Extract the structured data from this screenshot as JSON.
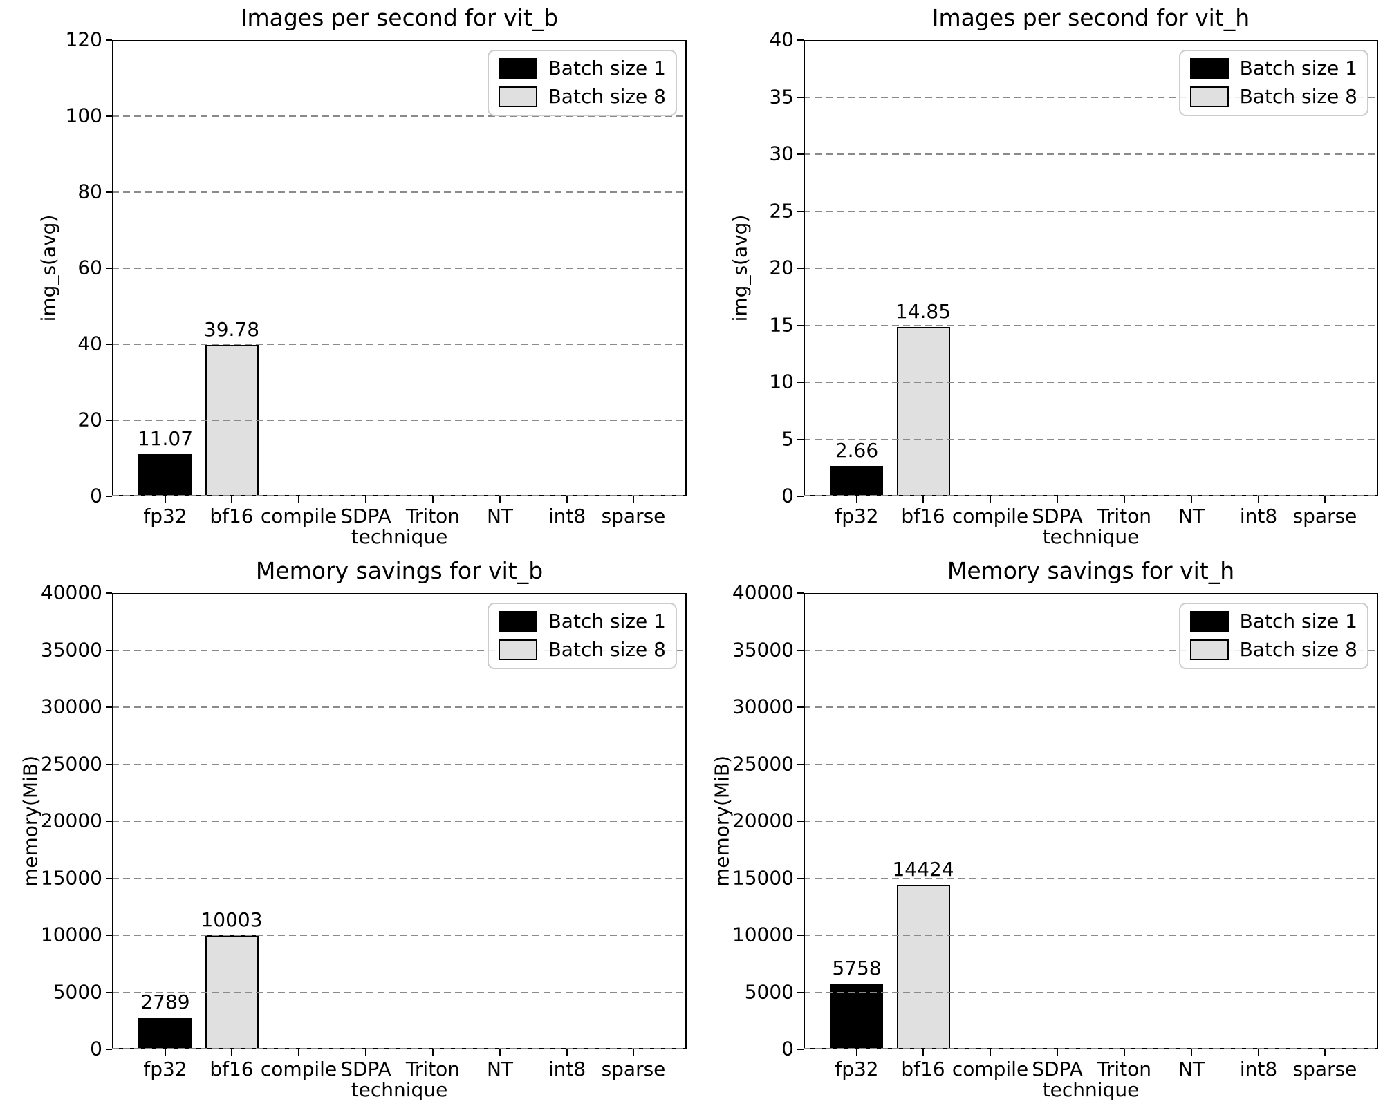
{
  "figure_background": "#ffffff",
  "colors": {
    "batch1_bar": "#000000",
    "batch8_bar": "#e0e0e0",
    "bar_edge": "#000000",
    "grid": "#8a8a8a",
    "spine": "#000000",
    "legend_border": "#cccccc",
    "text": "#000000"
  },
  "legend": {
    "position": "upper right",
    "items": [
      {
        "label": "Batch size 1",
        "color": "#000000"
      },
      {
        "label": "Batch size 8",
        "color": "#e0e0e0"
      }
    ]
  },
  "chart_data": [
    {
      "type": "bar",
      "title": "Images per second for vit_b",
      "ylabel": "img_s(avg)",
      "xlabel": "technique",
      "ylim": [
        0,
        120
      ],
      "yticks": [
        0,
        20,
        40,
        60,
        80,
        100,
        120
      ],
      "ytick_labels": [
        "0",
        "20",
        "40",
        "60",
        "80",
        "100",
        "120"
      ],
      "grid": true,
      "legend_position": "upper right",
      "bar_width": 0.8,
      "categories": [
        "fp32",
        "bf16",
        "compile",
        "SDPA",
        "Triton",
        "NT",
        "int8",
        "sparse"
      ],
      "series": [
        {
          "name": "Batch size 1",
          "color": "#000000",
          "values": [
            11.07,
            null,
            null,
            null,
            null,
            null,
            null,
            null
          ],
          "labels": [
            "11.07",
            null,
            null,
            null,
            null,
            null,
            null,
            null
          ]
        },
        {
          "name": "Batch size 8",
          "color": "#e0e0e0",
          "values": [
            null,
            39.78,
            null,
            null,
            null,
            null,
            null,
            null
          ],
          "labels": [
            null,
            "39.78",
            null,
            null,
            null,
            null,
            null,
            null
          ]
        }
      ]
    },
    {
      "type": "bar",
      "title": "Images per second for vit_h",
      "ylabel": "img_s(avg)",
      "xlabel": "technique",
      "ylim": [
        0,
        40
      ],
      "yticks": [
        0,
        5,
        10,
        15,
        20,
        25,
        30,
        35,
        40
      ],
      "ytick_labels": [
        "0",
        "5",
        "10",
        "15",
        "20",
        "25",
        "30",
        "35",
        "40"
      ],
      "grid": true,
      "legend_position": "upper right",
      "bar_width": 0.8,
      "categories": [
        "fp32",
        "bf16",
        "compile",
        "SDPA",
        "Triton",
        "NT",
        "int8",
        "sparse"
      ],
      "series": [
        {
          "name": "Batch size 1",
          "color": "#000000",
          "values": [
            2.66,
            null,
            null,
            null,
            null,
            null,
            null,
            null
          ],
          "labels": [
            "2.66",
            null,
            null,
            null,
            null,
            null,
            null,
            null
          ]
        },
        {
          "name": "Batch size 8",
          "color": "#e0e0e0",
          "values": [
            null,
            14.85,
            null,
            null,
            null,
            null,
            null,
            null
          ],
          "labels": [
            null,
            "14.85",
            null,
            null,
            null,
            null,
            null,
            null
          ]
        }
      ]
    },
    {
      "type": "bar",
      "title": "Memory savings for vit_b",
      "ylabel": "memory(MiB)",
      "xlabel": "technique",
      "ylim": [
        0,
        40000
      ],
      "yticks": [
        0,
        5000,
        10000,
        15000,
        20000,
        25000,
        30000,
        35000,
        40000
      ],
      "ytick_labels": [
        "0",
        "5000",
        "10000",
        "15000",
        "20000",
        "25000",
        "30000",
        "35000",
        "40000"
      ],
      "grid": true,
      "legend_position": "upper right",
      "bar_width": 0.8,
      "categories": [
        "fp32",
        "bf16",
        "compile",
        "SDPA",
        "Triton",
        "NT",
        "int8",
        "sparse"
      ],
      "series": [
        {
          "name": "Batch size 1",
          "color": "#000000",
          "values": [
            2789,
            null,
            null,
            null,
            null,
            null,
            null,
            null
          ],
          "labels": [
            "2789",
            null,
            null,
            null,
            null,
            null,
            null,
            null
          ]
        },
        {
          "name": "Batch size 8",
          "color": "#e0e0e0",
          "values": [
            null,
            10003,
            null,
            null,
            null,
            null,
            null,
            null
          ],
          "labels": [
            null,
            "10003",
            null,
            null,
            null,
            null,
            null,
            null
          ]
        }
      ]
    },
    {
      "type": "bar",
      "title": "Memory savings for vit_h",
      "ylabel": "memory(MiB)",
      "xlabel": "technique",
      "ylim": [
        0,
        40000
      ],
      "yticks": [
        0,
        5000,
        10000,
        15000,
        20000,
        25000,
        30000,
        35000,
        40000
      ],
      "ytick_labels": [
        "0",
        "5000",
        "10000",
        "15000",
        "20000",
        "25000",
        "30000",
        "35000",
        "40000"
      ],
      "grid": true,
      "legend_position": "upper right",
      "bar_width": 0.8,
      "categories": [
        "fp32",
        "bf16",
        "compile",
        "SDPA",
        "Triton",
        "NT",
        "int8",
        "sparse"
      ],
      "series": [
        {
          "name": "Batch size 1",
          "color": "#000000",
          "values": [
            5758,
            null,
            null,
            null,
            null,
            null,
            null,
            null
          ],
          "labels": [
            "5758",
            null,
            null,
            null,
            null,
            null,
            null,
            null
          ]
        },
        {
          "name": "Batch size 8",
          "color": "#e0e0e0",
          "values": [
            null,
            14424,
            null,
            null,
            null,
            null,
            null,
            null
          ],
          "labels": [
            null,
            "14424",
            null,
            null,
            null,
            null,
            null,
            null
          ]
        }
      ]
    }
  ]
}
